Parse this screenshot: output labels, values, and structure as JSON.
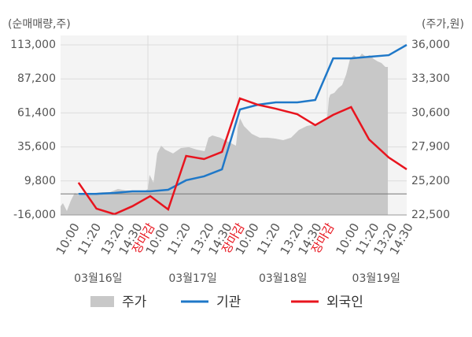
{
  "chart_data": {
    "type": "line",
    "ylabel": "(순매매량,주)",
    "y2label": "(주가,원)",
    "xlim": [
      0,
      19.3
    ],
    "ylim": [
      -16000,
      113000
    ],
    "yticks": [
      {
        "value": 113000,
        "label": "113,000"
      },
      {
        "value": 87200,
        "label": "87,200"
      },
      {
        "value": 61400,
        "label": "61,400"
      },
      {
        "value": 35600,
        "label": "35,600"
      },
      {
        "value": 9800,
        "label": "9,800"
      },
      {
        "value": -16000,
        "label": "-16,000"
      }
    ],
    "y2lim": [
      22500,
      36000
    ],
    "y2ticks": [
      {
        "value": 36000,
        "label": "36,000"
      },
      {
        "value": 33300,
        "label": "33,300"
      },
      {
        "value": 30600,
        "label": "30,600"
      },
      {
        "value": 27900,
        "label": "27,900"
      },
      {
        "value": 25200,
        "label": "25,200"
      },
      {
        "value": 22500,
        "label": "22,500"
      }
    ],
    "xgrid": [
      4.87,
      9.87,
      14.87
    ],
    "xticks": [
      {
        "value": 0.9,
        "label": "10:00"
      },
      {
        "value": 2.1,
        "label": "11:20"
      },
      {
        "value": 3.4,
        "label": "13:20"
      },
      {
        "value": 4.4,
        "label": "14:30"
      },
      {
        "value": 5.1,
        "label": "장마감",
        "color": "#e8141e"
      },
      {
        "value": 5.9,
        "label": "10:00"
      },
      {
        "value": 7.1,
        "label": "11:20"
      },
      {
        "value": 8.4,
        "label": "13:20"
      },
      {
        "value": 9.4,
        "label": "14:30"
      },
      {
        "value": 10.1,
        "label": "장마감",
        "color": "#e8141e"
      },
      {
        "value": 10.9,
        "label": "10:00"
      },
      {
        "value": 12.1,
        "label": "11:20"
      },
      {
        "value": 13.4,
        "label": "13:20"
      },
      {
        "value": 14.4,
        "label": "14:30"
      },
      {
        "value": 15.1,
        "label": "장마감",
        "color": "#e8141e"
      },
      {
        "value": 16.5,
        "label": "10:00"
      },
      {
        "value": 17.6,
        "label": "11:20"
      },
      {
        "value": 18.6,
        "label": "13:20"
      },
      {
        "value": 19.5,
        "label": "14:30"
      }
    ],
    "day_labels": [
      {
        "value": 2.1,
        "label": "03월16일"
      },
      {
        "value": 7.37,
        "label": "03월17일"
      },
      {
        "value": 12.4,
        "label": "03월18일"
      },
      {
        "value": 17.6,
        "label": "03월19일"
      }
    ],
    "series": [
      {
        "name": "주가",
        "color": "#c8c8c8",
        "axis": "y2",
        "kind": "area",
        "x": [
          0,
          0.13,
          0.35,
          0.57,
          0.79,
          1.01,
          1.45,
          1.89,
          2.32,
          2.76,
          3.2,
          3.64,
          4.08,
          4.74,
          4.87,
          4.96,
          5.18,
          5.39,
          5.61,
          5.83,
          6.27,
          6.71,
          7.15,
          7.59,
          8.03,
          8.25,
          8.46,
          8.9,
          9.34,
          9.78,
          9.87,
          10,
          10.22,
          10.66,
          11.1,
          11.54,
          11.97,
          12.41,
          12.85,
          13.29,
          13.73,
          14.17,
          14.61,
          14.87,
          14.96,
          15.04,
          15.26,
          15.48,
          15.7,
          15.92,
          16.14,
          16.36,
          16.58,
          16.8,
          17.02,
          17.24,
          17.46,
          17.68,
          17.89,
          18.11,
          18.25
        ],
        "values": [
          23190,
          23440,
          22810,
          23630,
          24250,
          24060,
          24190,
          24250,
          24310,
          24310,
          24560,
          24440,
          24440,
          24440,
          24560,
          25690,
          25060,
          27380,
          28000,
          27690,
          27380,
          27810,
          27880,
          27690,
          27560,
          28630,
          28810,
          28630,
          28310,
          28000,
          29250,
          30190,
          29560,
          28940,
          28630,
          28630,
          28560,
          28440,
          28630,
          29250,
          29560,
          29690,
          29880,
          30190,
          31750,
          32060,
          32190,
          32560,
          32810,
          33630,
          34880,
          35190,
          34880,
          35310,
          35060,
          35190,
          34880,
          34690,
          34560,
          34250,
          34250
        ]
      },
      {
        "name": "기관",
        "color": "#1f78c8",
        "kind": "line",
        "x": [
          1,
          2,
          3,
          4,
          5,
          6,
          7,
          8,
          9,
          10,
          11,
          12,
          13.2,
          14.2,
          15.2,
          16.2,
          17.2,
          18.3,
          19.3
        ],
        "values": [
          0,
          0,
          700,
          1900,
          1900,
          3100,
          10300,
          13300,
          18600,
          64000,
          67600,
          69400,
          69400,
          71200,
          102800,
          102800,
          104000,
          105200,
          113000
        ]
      },
      {
        "name": "외국인",
        "color": "#e8141e",
        "kind": "line",
        "x": [
          1,
          2,
          3,
          4,
          5,
          6,
          7,
          8,
          9,
          10,
          11,
          12,
          13.2,
          14.2,
          15.2,
          16.2,
          17.2,
          18.3,
          19.3
        ],
        "values": [
          8500,
          -11200,
          -15400,
          -9400,
          -1700,
          -11800,
          28800,
          26400,
          31800,
          72400,
          67600,
          64600,
          60400,
          52100,
          59900,
          65800,
          41300,
          27600,
          18600
        ]
      }
    ]
  }
}
